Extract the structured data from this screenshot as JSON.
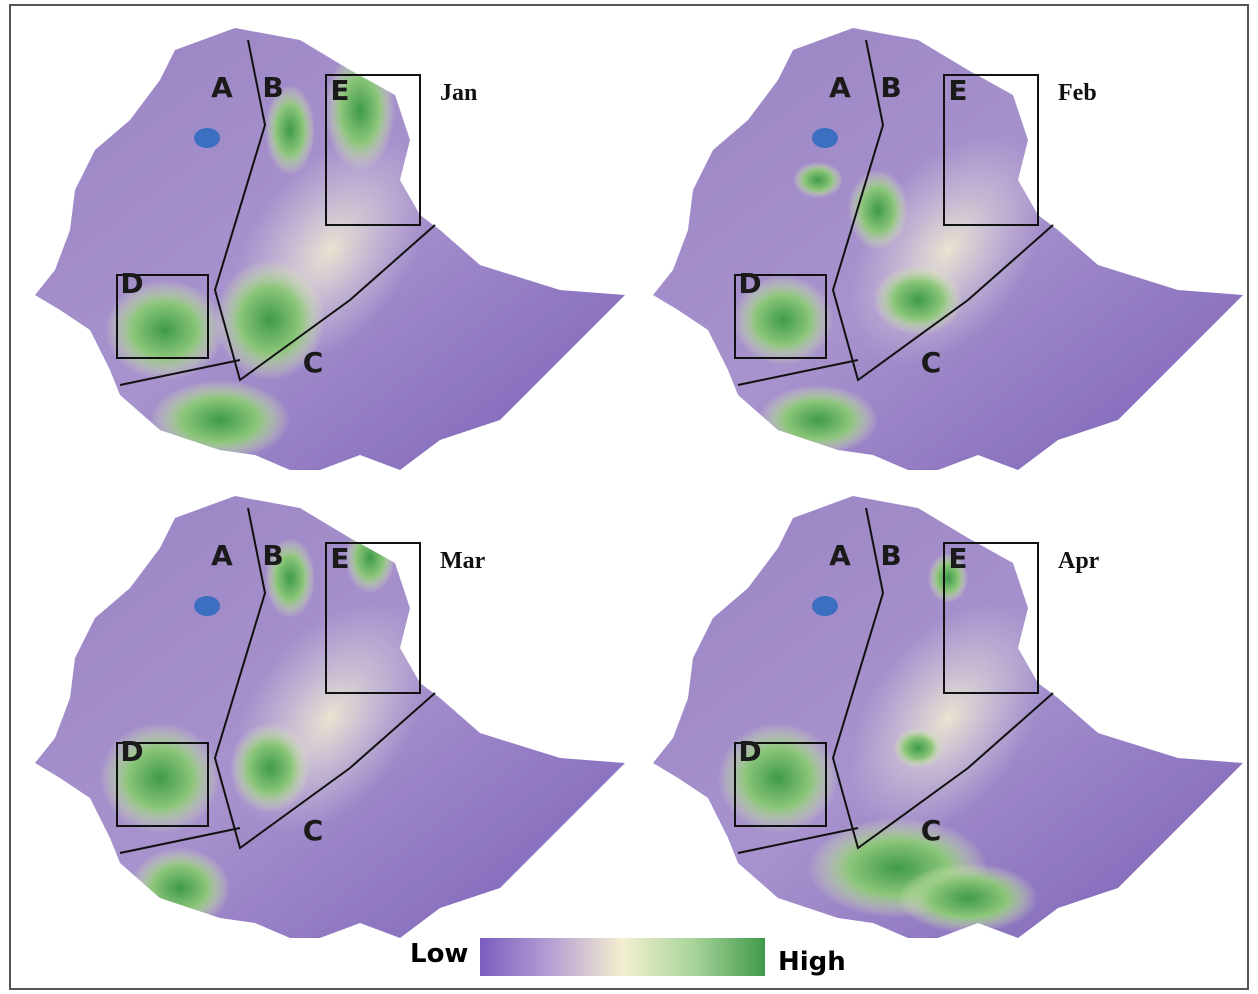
{
  "panels": [
    {
      "month": "Jan",
      "regions": [
        "A",
        "B",
        "C",
        "D",
        "E"
      ]
    },
    {
      "month": "Feb",
      "regions": [
        "A",
        "B",
        "C",
        "D",
        "E"
      ]
    },
    {
      "month": "Mar",
      "regions": [
        "A",
        "B",
        "C",
        "D",
        "E"
      ]
    },
    {
      "month": "Apr",
      "regions": [
        "A",
        "B",
        "C",
        "D",
        "E"
      ]
    }
  ],
  "legend": {
    "low": "Low",
    "high": "High"
  }
}
